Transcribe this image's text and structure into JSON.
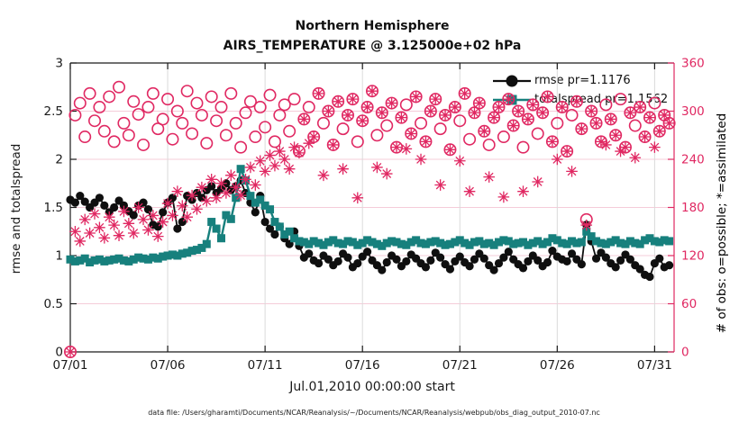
{
  "title": {
    "line1": "Northern Hemisphere",
    "line2": "AIRS_TEMPERATURE @ 3.125000e+02 hPa"
  },
  "legend": {
    "rmse_label": "rmse pr=1.1176",
    "totalspread_label": "totalspread pr=1.1562"
  },
  "footer": {
    "data_file_note": "data file: /Users/gharamti/Documents/NCAR/Reanalysis/~/Documents/NCAR/Reanalysis/webpub/obs_diag_output_2010-07.nc"
  },
  "colors": {
    "rmse": "#0f0f0f",
    "totalspread": "#17807D",
    "obs": "#E02862",
    "grid_h": "#f5ccd9",
    "grid_v": "#dadada",
    "axis": "#1a1a1a"
  },
  "chart_data": {
    "type": "line+scatter",
    "title": [
      "Northern Hemisphere",
      "AIRS_TEMPERATURE @ 3.125000e+02 hPa"
    ],
    "xlabel": "Jul.01,2010 00:00:00 start",
    "ylabel_left": "rmse and totalspread",
    "ylabel_right": "# of obs: o=possible; *=assimilated",
    "grid": true,
    "legend_position": "top-right-inside",
    "x_range_days": [
      0,
      31
    ],
    "x_step_days": 0.25,
    "x_ticks": {
      "days": [
        0,
        5,
        10,
        15,
        20,
        25,
        30
      ],
      "labels": [
        "07/01",
        "07/06",
        "07/11",
        "07/16",
        "07/21",
        "07/26",
        "07/31"
      ]
    },
    "ylim_left": [
      0,
      3
    ],
    "yticks_left": [
      0,
      0.5,
      1,
      1.5,
      2,
      2.5,
      3
    ],
    "ylim_right": [
      0,
      360
    ],
    "yticks_right": [
      0,
      60,
      120,
      180,
      240,
      300,
      360
    ],
    "series": [
      {
        "name": "rmse",
        "axis": "left",
        "type": "line",
        "marker": "filled-circle",
        "values": [
          1.58,
          1.55,
          1.62,
          1.56,
          1.5,
          1.55,
          1.6,
          1.52,
          1.45,
          1.5,
          1.57,
          1.52,
          1.46,
          1.42,
          1.52,
          1.55,
          1.48,
          1.32,
          1.3,
          1.45,
          1.55,
          1.6,
          1.28,
          1.35,
          1.62,
          1.58,
          1.65,
          1.6,
          1.68,
          1.72,
          1.65,
          1.7,
          1.75,
          1.68,
          1.72,
          1.78,
          1.65,
          1.55,
          1.45,
          1.62,
          1.35,
          1.28,
          1.22,
          1.3,
          1.18,
          1.12,
          1.25,
          1.1,
          0.98,
          1.02,
          0.95,
          0.92,
          1.0,
          0.96,
          0.9,
          0.94,
          1.02,
          0.98,
          0.88,
          0.92,
          0.99,
          1.04,
          0.95,
          0.9,
          0.85,
          0.93,
          1.0,
          0.96,
          0.89,
          0.94,
          1.01,
          0.97,
          0.92,
          0.88,
          0.95,
          1.03,
          0.98,
          0.91,
          0.86,
          0.94,
          0.99,
          0.93,
          0.89,
          0.96,
          1.02,
          0.97,
          0.9,
          0.85,
          0.92,
          0.98,
          1.04,
          0.96,
          0.91,
          0.87,
          0.94,
          1.0,
          0.95,
          0.89,
          0.93,
          1.05,
          0.99,
          0.96,
          0.94,
          1.02,
          0.96,
          0.91,
          1.32,
          1.15,
          0.97,
          1.03,
          0.98,
          0.92,
          0.88,
          0.95,
          1.01,
          0.96,
          0.9,
          0.86,
          0.8,
          0.78,
          0.92,
          0.97,
          0.88,
          0.9
        ]
      },
      {
        "name": "totalspread",
        "axis": "left",
        "type": "line",
        "marker": "filled-square",
        "values": [
          0.96,
          0.94,
          0.95,
          0.97,
          0.93,
          0.95,
          0.96,
          0.94,
          0.95,
          0.96,
          0.97,
          0.95,
          0.94,
          0.96,
          0.98,
          0.97,
          0.96,
          0.98,
          0.97,
          0.99,
          1.0,
          1.01,
          1.0,
          1.02,
          1.03,
          1.05,
          1.06,
          1.08,
          1.12,
          1.35,
          1.28,
          1.18,
          1.42,
          1.38,
          1.6,
          1.9,
          1.78,
          1.62,
          1.55,
          1.58,
          1.52,
          1.48,
          1.35,
          1.3,
          1.22,
          1.25,
          1.18,
          1.15,
          1.14,
          1.12,
          1.15,
          1.13,
          1.11,
          1.14,
          1.16,
          1.13,
          1.12,
          1.15,
          1.14,
          1.11,
          1.13,
          1.16,
          1.14,
          1.12,
          1.1,
          1.13,
          1.15,
          1.14,
          1.12,
          1.11,
          1.14,
          1.16,
          1.13,
          1.12,
          1.14,
          1.15,
          1.13,
          1.11,
          1.12,
          1.14,
          1.16,
          1.13,
          1.11,
          1.14,
          1.15,
          1.12,
          1.13,
          1.11,
          1.14,
          1.16,
          1.15,
          1.12,
          1.13,
          1.14,
          1.11,
          1.13,
          1.15,
          1.12,
          1.14,
          1.18,
          1.16,
          1.13,
          1.12,
          1.15,
          1.13,
          1.14,
          1.25,
          1.2,
          1.15,
          1.13,
          1.12,
          1.14,
          1.16,
          1.13,
          1.12,
          1.15,
          1.13,
          1.12,
          1.16,
          1.18,
          1.15,
          1.14,
          1.16,
          1.15
        ]
      },
      {
        "name": "possible",
        "axis": "right",
        "type": "scatter",
        "marker": "open-circle",
        "values": [
          0,
          295,
          310,
          268,
          322,
          288,
          305,
          275,
          318,
          262,
          330,
          285,
          270,
          312,
          296,
          258,
          305,
          322,
          278,
          290,
          315,
          265,
          300,
          285,
          325,
          272,
          310,
          295,
          260,
          318,
          288,
          305,
          270,
          322,
          285,
          255,
          298,
          312,
          268,
          305,
          280,
          320,
          262,
          295,
          308,
          275,
          315,
          250,
          290,
          305,
          268,
          322,
          285,
          300,
          258,
          312,
          278,
          295,
          315,
          262,
          288,
          305,
          325,
          270,
          298,
          282,
          310,
          255,
          292,
          308,
          272,
          318,
          285,
          262,
          300,
          315,
          278,
          295,
          252,
          305,
          288,
          322,
          265,
          298,
          310,
          275,
          258,
          292,
          305,
          268,
          315,
          282,
          300,
          255,
          290,
          308,
          272,
          298,
          318,
          262,
          285,
          305,
          250,
          295,
          312,
          278,
          165,
          300,
          285,
          262,
          308,
          290,
          270,
          315,
          255,
          298,
          282,
          305,
          268,
          292,
          310,
          275,
          295,
          285
        ]
      },
      {
        "name": "assimilated",
        "axis": "right",
        "type": "scatter",
        "marker": "asterisk",
        "values": [
          0,
          150,
          138,
          165,
          148,
          172,
          155,
          142,
          168,
          158,
          145,
          175,
          160,
          148,
          180,
          165,
          152,
          170,
          144,
          162,
          185,
          170,
          200,
          182,
          168,
          195,
          178,
          205,
          188,
          215,
          192,
          210,
          198,
          220,
          205,
          195,
          215,
          230,
          208,
          238,
          225,
          245,
          232,
          250,
          240,
          228,
          255,
          248,
          290,
          260,
          268,
          322,
          220,
          300,
          258,
          312,
          228,
          295,
          315,
          192,
          288,
          305,
          325,
          230,
          298,
          222,
          310,
          255,
          292,
          253,
          272,
          318,
          240,
          262,
          300,
          315,
          208,
          295,
          252,
          305,
          238,
          322,
          200,
          298,
          310,
          275,
          218,
          292,
          305,
          193,
          315,
          282,
          300,
          200,
          290,
          308,
          212,
          298,
          318,
          262,
          240,
          305,
          250,
          225,
          312,
          278,
          158,
          300,
          285,
          262,
          258,
          290,
          270,
          250,
          255,
          298,
          242,
          305,
          268,
          292,
          255,
          275,
          295,
          285
        ]
      }
    ]
  }
}
